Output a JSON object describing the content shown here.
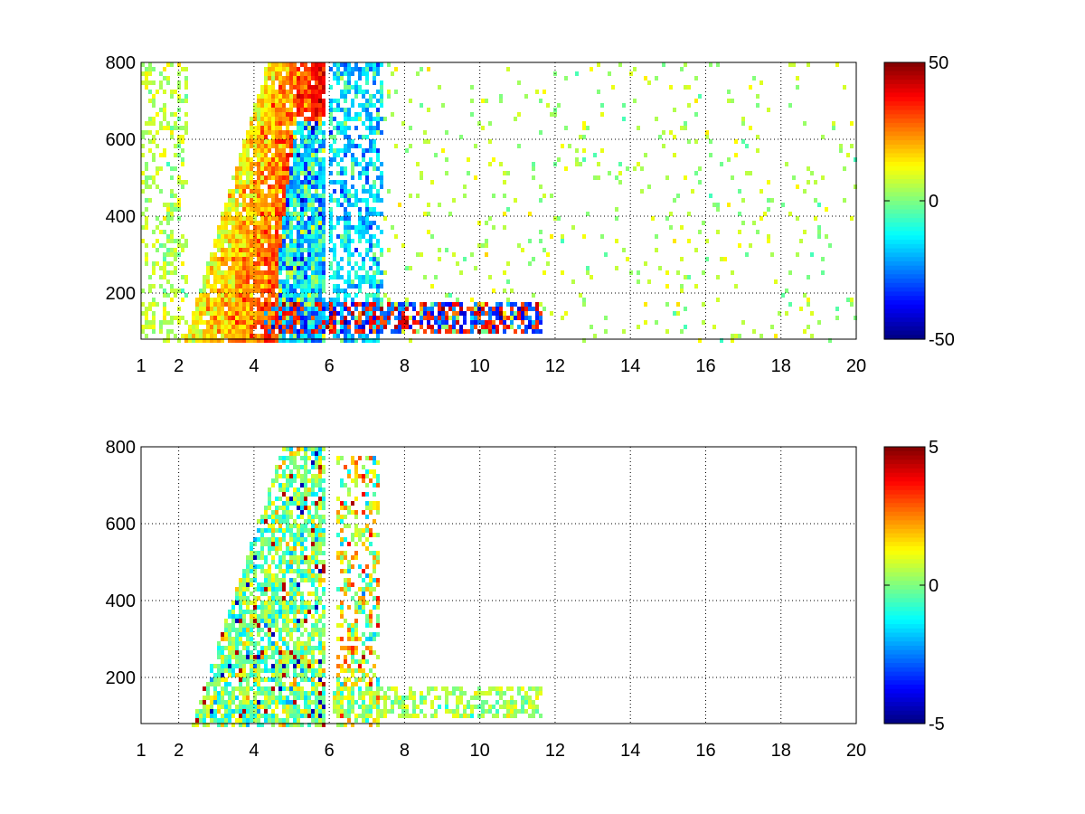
{
  "chart_data": [
    {
      "type": "heatmap",
      "title": "",
      "xlabel": "",
      "ylabel": "",
      "xlim": [
        1,
        20
      ],
      "ylim": [
        80,
        800
      ],
      "grid": true,
      "colormap": "jet",
      "x_ticks": [
        1,
        2,
        4,
        6,
        8,
        10,
        12,
        14,
        16,
        18,
        20
      ],
      "y_ticks": [
        200,
        400,
        600,
        800
      ],
      "colorbar": {
        "range": [
          -50,
          50
        ],
        "ticks": [
          -50,
          0,
          50
        ]
      },
      "regions": [
        {
          "name": "positive wedge",
          "x_range": [
            2.3,
            5.8
          ],
          "y_range": [
            80,
            800
          ],
          "typical_value": 30
        },
        {
          "name": "negative core",
          "x_range": [
            4.6,
            7.4
          ],
          "y_range": [
            80,
            650
          ],
          "typical_value": -25
        },
        {
          "name": "low-frequency band",
          "x_range": [
            6,
            11.6
          ],
          "y_range": [
            100,
            180
          ],
          "typical_value": 20
        },
        {
          "name": "sparse scatter",
          "x_range": [
            6,
            20
          ],
          "y_range": [
            80,
            800
          ],
          "typical_value": 5
        }
      ]
    },
    {
      "type": "heatmap",
      "title": "",
      "xlabel": "",
      "ylabel": "",
      "xlim": [
        1,
        20
      ],
      "ylim": [
        80,
        800
      ],
      "grid": true,
      "colormap": "jet",
      "x_ticks": [
        1,
        2,
        4,
        6,
        8,
        10,
        12,
        14,
        16,
        18,
        20
      ],
      "y_ticks": [
        200,
        400,
        600,
        800
      ],
      "colorbar": {
        "range": [
          -5,
          5
        ],
        "ticks": [
          -5,
          0,
          5
        ]
      },
      "regions": [
        {
          "name": "main cluster",
          "x_range": [
            2.0,
            5.8
          ],
          "y_range": [
            80,
            800
          ],
          "typical_value": 0
        },
        {
          "name": "secondary cluster",
          "x_range": [
            6.2,
            7.4
          ],
          "y_range": [
            80,
            800
          ],
          "typical_value": 1.5
        },
        {
          "name": "low-frequency band",
          "x_range": [
            6,
            11.6
          ],
          "y_range": [
            100,
            180
          ],
          "typical_value": 0.5
        }
      ]
    }
  ]
}
